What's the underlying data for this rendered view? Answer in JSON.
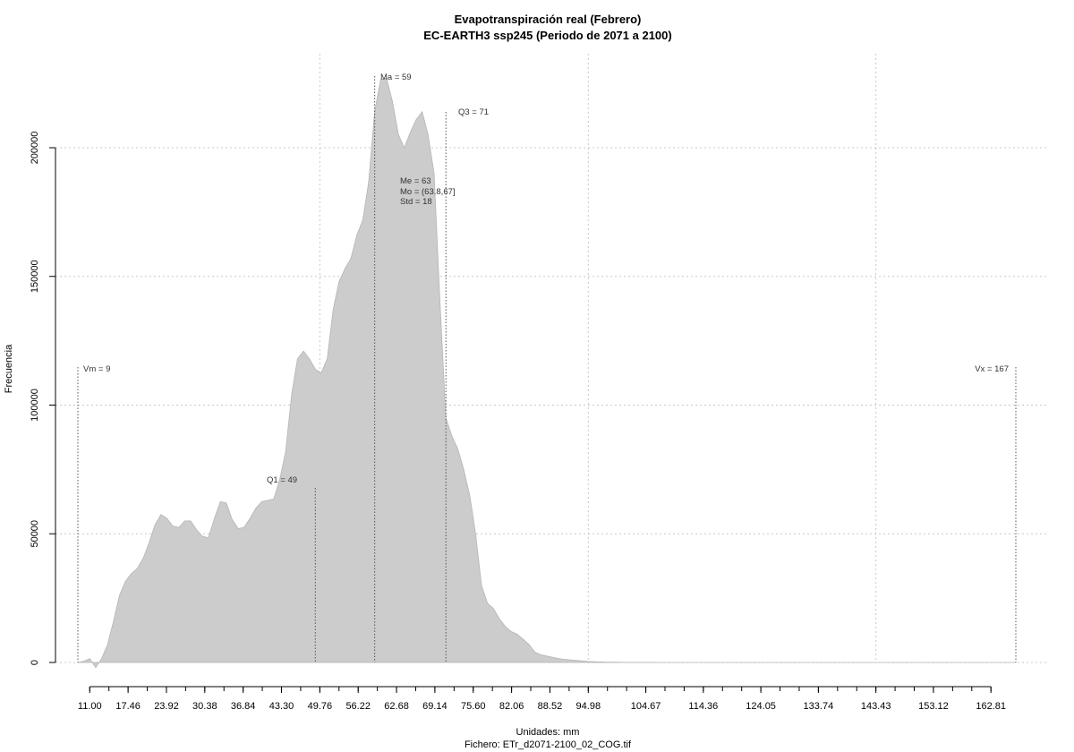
{
  "chart_data": {
    "type": "area",
    "title": "Evapotranspiración real (Febrero)",
    "subtitle": "EC-EARTH3 ssp245 (Periodo de 2071 a 2100)",
    "xlabel": "Unidades: mm",
    "footer": "Fichero: ETr_d2071-2100_02_COG.tif",
    "ylabel": "Frecuencia",
    "xlim": [
      9,
      167
    ],
    "ylim": [
      0,
      230000
    ],
    "x_ticks": [
      "11.00",
      "17.46",
      "23.92",
      "30.38",
      "36.84",
      "43.30",
      "49.76",
      "56.22",
      "62.68",
      "69.14",
      "75.60",
      "82.06",
      "88.52",
      "94.98",
      "104.67",
      "114.36",
      "124.05",
      "133.74",
      "143.43",
      "153.12",
      "162.81"
    ],
    "y_ticks": [
      0,
      50000,
      100000,
      150000,
      200000
    ],
    "y_tick_labels": [
      "0",
      "50000",
      "100000",
      "150000",
      "200000"
    ],
    "grid": true,
    "fill_color": "#cccccc",
    "series": [
      {
        "x": [
          9,
          10,
          11,
          12,
          13,
          14,
          15,
          16,
          17,
          18,
          19,
          20,
          21,
          22,
          23,
          24,
          25,
          26,
          27,
          28,
          29,
          30,
          31,
          32,
          33,
          34,
          35,
          36,
          37,
          38,
          39,
          40,
          41,
          42,
          43,
          44,
          45,
          46,
          47,
          48,
          49,
          50,
          51,
          52,
          53,
          54,
          55,
          56,
          57,
          58,
          59,
          60,
          61,
          62,
          63,
          64,
          65,
          66,
          67,
          68,
          69,
          70,
          71,
          72,
          73,
          74,
          75,
          76,
          77,
          78,
          79,
          80,
          81,
          82,
          83,
          84,
          85,
          86,
          87,
          88,
          89,
          90,
          91,
          92,
          93,
          94,
          95,
          96,
          97,
          98,
          99,
          100,
          102,
          104,
          106,
          108,
          110,
          112,
          115,
          120,
          130,
          140,
          150,
          160,
          167
        ],
        "y": [
          0,
          500,
          1500,
          -2000,
          1500,
          7000,
          16000,
          26000,
          31500,
          34500,
          36500,
          40500,
          46500,
          53500,
          57500,
          56000,
          53000,
          52500,
          55000,
          55000,
          51500,
          49000,
          48500,
          56000,
          62500,
          62000,
          55500,
          52000,
          52500,
          56000,
          60000,
          62500,
          63000,
          63500,
          71000,
          82000,
          104000,
          118000,
          121000,
          118000,
          114000,
          112500,
          118000,
          137000,
          148000,
          153000,
          157000,
          166000,
          172000,
          187000,
          214000,
          226500,
          227000,
          218000,
          205000,
          200000,
          206000,
          211000,
          214000,
          205000,
          190000,
          140000,
          95000,
          88000,
          83000,
          75000,
          65000,
          50000,
          30000,
          23000,
          21000,
          17000,
          14000,
          12000,
          11000,
          9000,
          7000,
          4000,
          3000,
          2500,
          2000,
          1500,
          1200,
          1000,
          800,
          600,
          400,
          300,
          200,
          150,
          100,
          80,
          50,
          30,
          20,
          10,
          5,
          3,
          2,
          1,
          0,
          0,
          0,
          0,
          0
        ]
      }
    ],
    "annotations": {
      "vm": "Vm = 9",
      "q1": "Q1 = 49",
      "ma": "Ma = 59",
      "me": "Me = 63",
      "mo": "Mo = (63.8,67]",
      "std": "Std = 18",
      "q3": "Q3 = 71",
      "vx": "Vx = 167"
    },
    "marker_values": {
      "vm": 9,
      "q1": 49,
      "ma": 59,
      "q3": 71,
      "vx": 167
    }
  }
}
